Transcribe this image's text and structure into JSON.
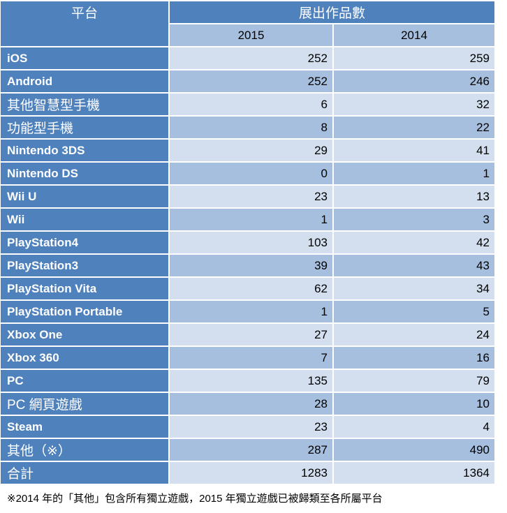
{
  "header": {
    "platform": "平台",
    "exhibits": "展出作品數",
    "years": [
      "2015",
      "2014"
    ]
  },
  "rows": [
    {
      "platform": "iOS",
      "y2015": "252",
      "y2014": "259"
    },
    {
      "platform": "Android",
      "y2015": "252",
      "y2014": "246"
    },
    {
      "platform": "其他智慧型手機",
      "y2015": "6",
      "y2014": "32"
    },
    {
      "platform": "功能型手機",
      "y2015": "8",
      "y2014": "22"
    },
    {
      "platform": "Nintendo 3DS",
      "y2015": "29",
      "y2014": "41"
    },
    {
      "platform": "Nintendo DS",
      "y2015": "0",
      "y2014": "1"
    },
    {
      "platform": "Wii U",
      "y2015": "23",
      "y2014": "13"
    },
    {
      "platform": "Wii",
      "y2015": "1",
      "y2014": "3"
    },
    {
      "platform": "PlayStation4",
      "y2015": "103",
      "y2014": "42"
    },
    {
      "platform": "PlayStation3",
      "y2015": "39",
      "y2014": "43"
    },
    {
      "platform": "PlayStation Vita",
      "y2015": "62",
      "y2014": "34"
    },
    {
      "platform": "PlayStation Portable",
      "y2015": "1",
      "y2014": "5"
    },
    {
      "platform": "Xbox One",
      "y2015": "27",
      "y2014": "24"
    },
    {
      "platform": "Xbox 360",
      "y2015": "7",
      "y2014": "16"
    },
    {
      "platform": "PC",
      "y2015": "135",
      "y2014": "79"
    },
    {
      "platform": "PC 網頁遊戲",
      "y2015": "28",
      "y2014": "10"
    },
    {
      "platform": "Steam",
      "y2015": "23",
      "y2014": "4"
    },
    {
      "platform": "其他（※）",
      "y2015": "287",
      "y2014": "490"
    },
    {
      "platform": "合計",
      "y2015": "1283",
      "y2014": "1364"
    }
  ],
  "footnote": "※2014 年的「其他」包含所有獨立遊戲，2015 年獨立遊戲已被歸類至各所屬平台"
}
